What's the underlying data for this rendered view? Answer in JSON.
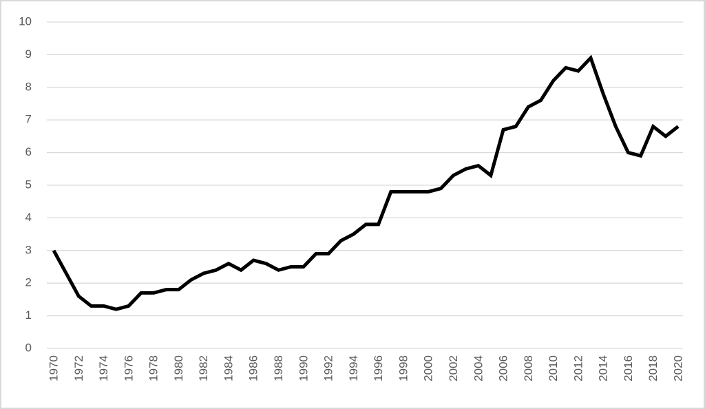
{
  "chart_data": {
    "type": "line",
    "x": [
      1970,
      1971,
      1972,
      1973,
      1974,
      1975,
      1976,
      1977,
      1978,
      1979,
      1980,
      1981,
      1982,
      1983,
      1984,
      1985,
      1986,
      1987,
      1988,
      1989,
      1990,
      1991,
      1992,
      1993,
      1994,
      1995,
      1996,
      1997,
      1998,
      1999,
      2000,
      2001,
      2002,
      2003,
      2004,
      2005,
      2006,
      2007,
      2008,
      2009,
      2010,
      2011,
      2012,
      2013,
      2014,
      2015,
      2016,
      2017,
      2018,
      2019,
      2020
    ],
    "series": [
      {
        "color": "#000000",
        "values": [
          3.0,
          2.3,
          1.6,
          1.3,
          1.3,
          1.2,
          1.3,
          1.7,
          1.7,
          1.8,
          1.8,
          2.1,
          2.3,
          2.4,
          2.6,
          2.4,
          2.7,
          2.6,
          2.4,
          2.5,
          2.5,
          2.9,
          2.9,
          3.3,
          3.5,
          3.8,
          3.8,
          4.8,
          4.8,
          4.8,
          4.8,
          4.9,
          5.3,
          5.5,
          5.6,
          5.3,
          6.7,
          6.8,
          7.4,
          7.6,
          8.2,
          8.6,
          8.5,
          8.9,
          7.8,
          6.8,
          6.0,
          5.9,
          6.8,
          6.5,
          6.8
        ]
      }
    ],
    "xlim": [
      1970,
      2020
    ],
    "xticks": [
      1970,
      1972,
      1974,
      1976,
      1978,
      1980,
      1982,
      1984,
      1986,
      1988,
      1990,
      1992,
      1994,
      1996,
      1998,
      2000,
      2002,
      2004,
      2006,
      2008,
      2010,
      2012,
      2014,
      2016,
      2018,
      2020
    ],
    "ylim": [
      0,
      10
    ],
    "yticks": [
      0,
      1,
      2,
      3,
      4,
      5,
      6,
      7,
      8,
      9,
      10
    ],
    "grid": true
  }
}
